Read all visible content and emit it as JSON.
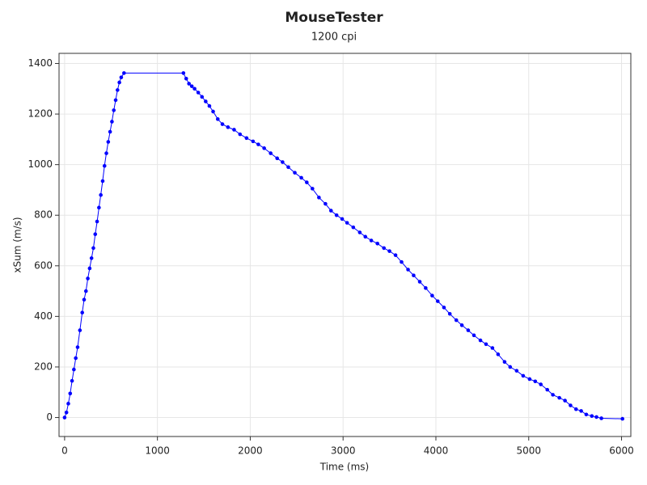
{
  "chart_data": {
    "type": "line",
    "title": "MouseTester",
    "subtitle": "1200 cpi",
    "x_label": "Time (ms)",
    "y_label": "xSum (m/s)",
    "color": "#0000ff",
    "grid": true,
    "xlim": [
      -60,
      6100
    ],
    "ylim": [
      -75,
      1440
    ],
    "xticks": [
      0,
      1000,
      2000,
      3000,
      4000,
      5000,
      6000
    ],
    "yticks": [
      0,
      200,
      400,
      600,
      800,
      1000,
      1200,
      1400
    ],
    "x": [
      0,
      20,
      40,
      60,
      80,
      100,
      120,
      140,
      165,
      190,
      210,
      230,
      250,
      270,
      290,
      310,
      330,
      350,
      370,
      390,
      410,
      430,
      450,
      470,
      490,
      510,
      530,
      550,
      570,
      590,
      610,
      640,
      1280,
      1310,
      1340,
      1370,
      1400,
      1440,
      1480,
      1520,
      1560,
      1600,
      1650,
      1700,
      1760,
      1826,
      1890,
      1960,
      2030,
      2087,
      2150,
      2220,
      2290,
      2348,
      2410,
      2480,
      2550,
      2609,
      2670,
      2740,
      2810,
      2870,
      2930,
      2990,
      3043,
      3110,
      3180,
      3240,
      3304,
      3370,
      3440,
      3500,
      3565,
      3630,
      3700,
      3760,
      3826,
      3890,
      3960,
      4020,
      4087,
      4150,
      4220,
      4280,
      4348,
      4410,
      4480,
      4540,
      4609,
      4670,
      4740,
      4800,
      4870,
      4940,
      5010,
      5070,
      5130,
      5200,
      5260,
      5330,
      5391,
      5450,
      5510,
      5565,
      5620,
      5680,
      5730,
      5783,
      6010
    ],
    "values": [
      0,
      20,
      55,
      95,
      145,
      190,
      235,
      278,
      345,
      415,
      466,
      500,
      550,
      590,
      630,
      670,
      725,
      775,
      830,
      880,
      935,
      995,
      1045,
      1090,
      1130,
      1170,
      1215,
      1255,
      1295,
      1325,
      1345,
      1362,
      1362,
      1340,
      1320,
      1310,
      1300,
      1285,
      1268,
      1250,
      1232,
      1210,
      1180,
      1160,
      1148,
      1138,
      1120,
      1105,
      1092,
      1080,
      1065,
      1045,
      1025,
      1010,
      990,
      968,
      948,
      930,
      905,
      870,
      845,
      818,
      800,
      785,
      770,
      752,
      732,
      715,
      700,
      688,
      670,
      658,
      642,
      615,
      585,
      562,
      537,
      512,
      482,
      460,
      435,
      410,
      385,
      365,
      345,
      325,
      305,
      290,
      275,
      250,
      220,
      200,
      185,
      165,
      152,
      143,
      131,
      110,
      90,
      78,
      67,
      48,
      33,
      26,
      12,
      6,
      2,
      -3,
      -5
    ]
  }
}
